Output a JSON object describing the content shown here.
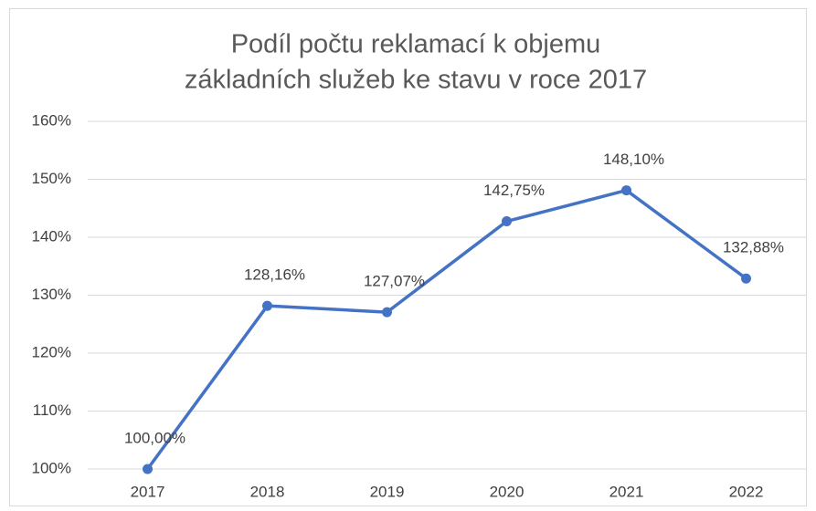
{
  "chart_data": {
    "type": "line",
    "title": [
      "Podíl počtu reklamací k objemu",
      "základních služeb ke stavu v roce 2017"
    ],
    "categories": [
      "2017",
      "2018",
      "2019",
      "2020",
      "2021",
      "2022"
    ],
    "series": [
      {
        "color": "#4472c4",
        "values": [
          100,
          128.16,
          127.07,
          142.75,
          148.1,
          132.88
        ],
        "value_labels": [
          "100,00%",
          "128,16%",
          "127,07%",
          "142,75%",
          "148,10%",
          "132,88%"
        ]
      }
    ],
    "ylim": [
      100,
      160
    ],
    "yticks": [
      {
        "value": 100,
        "label": "100%"
      },
      {
        "value": 110,
        "label": "110%"
      },
      {
        "value": 120,
        "label": "120%"
      },
      {
        "value": 130,
        "label": "130%"
      },
      {
        "value": 140,
        "label": "140%"
      },
      {
        "value": 150,
        "label": "150%"
      },
      {
        "value": 160,
        "label": "160%"
      }
    ],
    "grid": true
  }
}
